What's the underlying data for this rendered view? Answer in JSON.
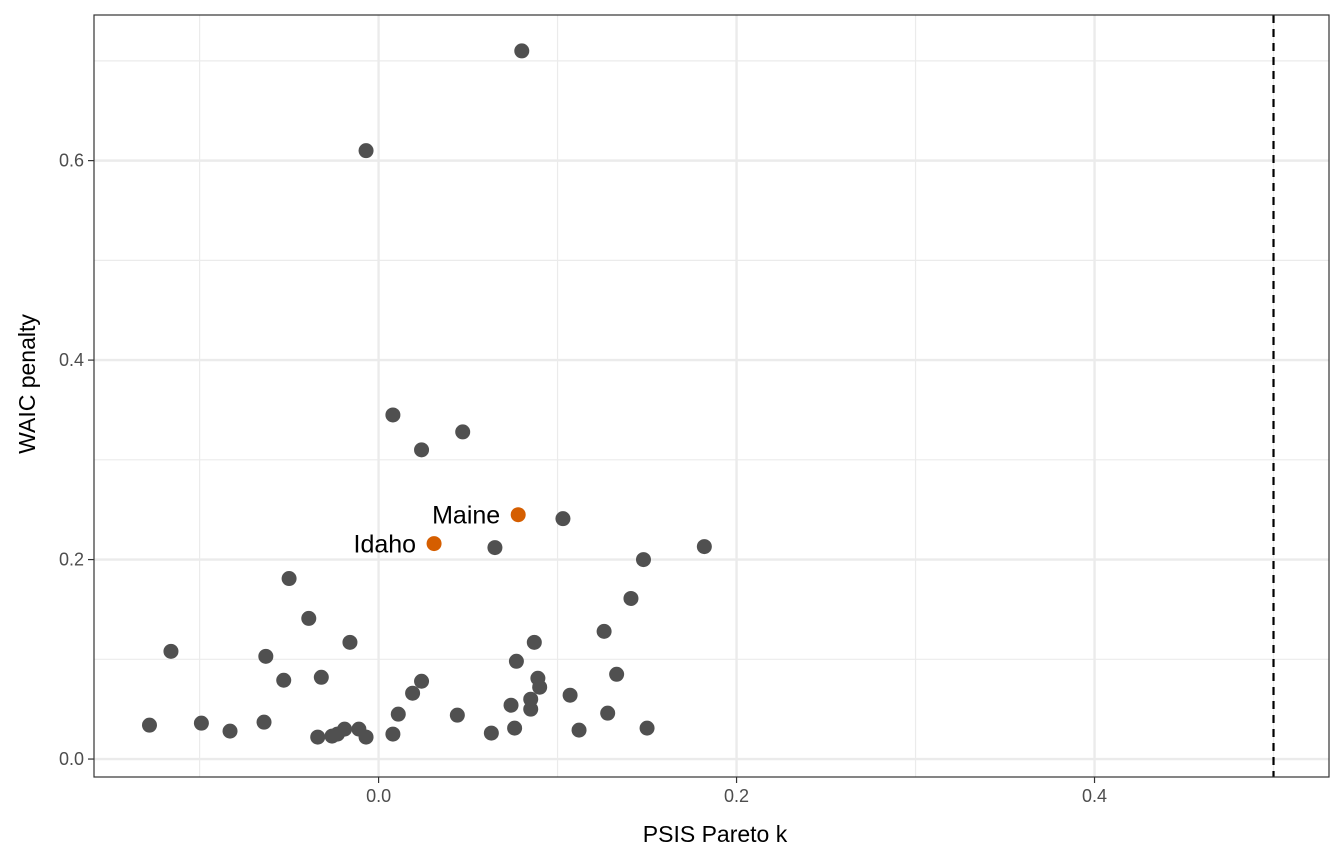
{
  "chart_data": {
    "type": "scatter",
    "title": "",
    "xlabel": "PSIS Pareto k",
    "ylabel": "WAIC penalty",
    "xlim": [
      -0.159,
      0.531
    ],
    "ylim": [
      -0.018,
      0.746
    ],
    "x_ticks_major": [
      0.0,
      0.2,
      0.4
    ],
    "x_tick_labels": [
      "0.0",
      "0.2",
      "0.4"
    ],
    "x_ticks_minor": [
      -0.1,
      0.1,
      0.3,
      0.5
    ],
    "y_ticks_major": [
      0.0,
      0.2,
      0.4,
      0.6
    ],
    "y_tick_labels": [
      "0.0",
      "0.2",
      "0.4",
      "0.6"
    ],
    "y_ticks_minor": [
      0.1,
      0.3,
      0.5,
      0.7
    ],
    "grid": true,
    "reference_line": {
      "x": 0.5,
      "style": "dashed",
      "color": "#000000"
    },
    "colors": {
      "points": "#505050",
      "highlight": "#D55E00",
      "grid": "#ebebeb",
      "panel_border": "#333333"
    },
    "series": [
      {
        "points": [
          {
            "x": 0.08,
            "y": 0.71
          },
          {
            "x": -0.007,
            "y": 0.61
          },
          {
            "x": 0.008,
            "y": 0.345
          },
          {
            "x": 0.047,
            "y": 0.328
          },
          {
            "x": 0.024,
            "y": 0.31
          },
          {
            "x": 0.103,
            "y": 0.241
          },
          {
            "x": 0.065,
            "y": 0.212
          },
          {
            "x": 0.182,
            "y": 0.213
          },
          {
            "x": 0.148,
            "y": 0.2
          },
          {
            "x": -0.05,
            "y": 0.181
          },
          {
            "x": 0.141,
            "y": 0.161
          },
          {
            "x": -0.039,
            "y": 0.141
          },
          {
            "x": 0.126,
            "y": 0.128
          },
          {
            "x": -0.016,
            "y": 0.117
          },
          {
            "x": 0.087,
            "y": 0.117
          },
          {
            "x": -0.116,
            "y": 0.108
          },
          {
            "x": -0.063,
            "y": 0.103
          },
          {
            "x": 0.077,
            "y": 0.098
          },
          {
            "x": 0.133,
            "y": 0.085
          },
          {
            "x": -0.032,
            "y": 0.082
          },
          {
            "x": 0.089,
            "y": 0.081
          },
          {
            "x": -0.053,
            "y": 0.079
          },
          {
            "x": 0.024,
            "y": 0.078
          },
          {
            "x": 0.09,
            "y": 0.072
          },
          {
            "x": 0.019,
            "y": 0.066
          },
          {
            "x": 0.107,
            "y": 0.064
          },
          {
            "x": 0.085,
            "y": 0.06
          },
          {
            "x": 0.074,
            "y": 0.054
          },
          {
            "x": 0.085,
            "y": 0.05
          },
          {
            "x": 0.128,
            "y": 0.046
          },
          {
            "x": 0.011,
            "y": 0.045
          },
          {
            "x": 0.044,
            "y": 0.044
          },
          {
            "x": -0.099,
            "y": 0.036
          },
          {
            "x": -0.064,
            "y": 0.037
          },
          {
            "x": -0.128,
            "y": 0.034
          },
          {
            "x": 0.15,
            "y": 0.031
          },
          {
            "x": 0.076,
            "y": 0.031
          },
          {
            "x": -0.011,
            "y": 0.03
          },
          {
            "x": -0.019,
            "y": 0.03
          },
          {
            "x": 0.112,
            "y": 0.029
          },
          {
            "x": -0.083,
            "y": 0.028
          },
          {
            "x": 0.063,
            "y": 0.026
          },
          {
            "x": 0.008,
            "y": 0.025
          },
          {
            "x": -0.023,
            "y": 0.025
          },
          {
            "x": -0.026,
            "y": 0.023
          },
          {
            "x": -0.034,
            "y": 0.022
          },
          {
            "x": -0.007,
            "y": 0.022
          }
        ]
      },
      {
        "highlight": true,
        "points": [
          {
            "x": 0.078,
            "y": 0.245,
            "label": "Maine"
          },
          {
            "x": 0.031,
            "y": 0.216,
            "label": "Idaho"
          }
        ]
      }
    ]
  }
}
